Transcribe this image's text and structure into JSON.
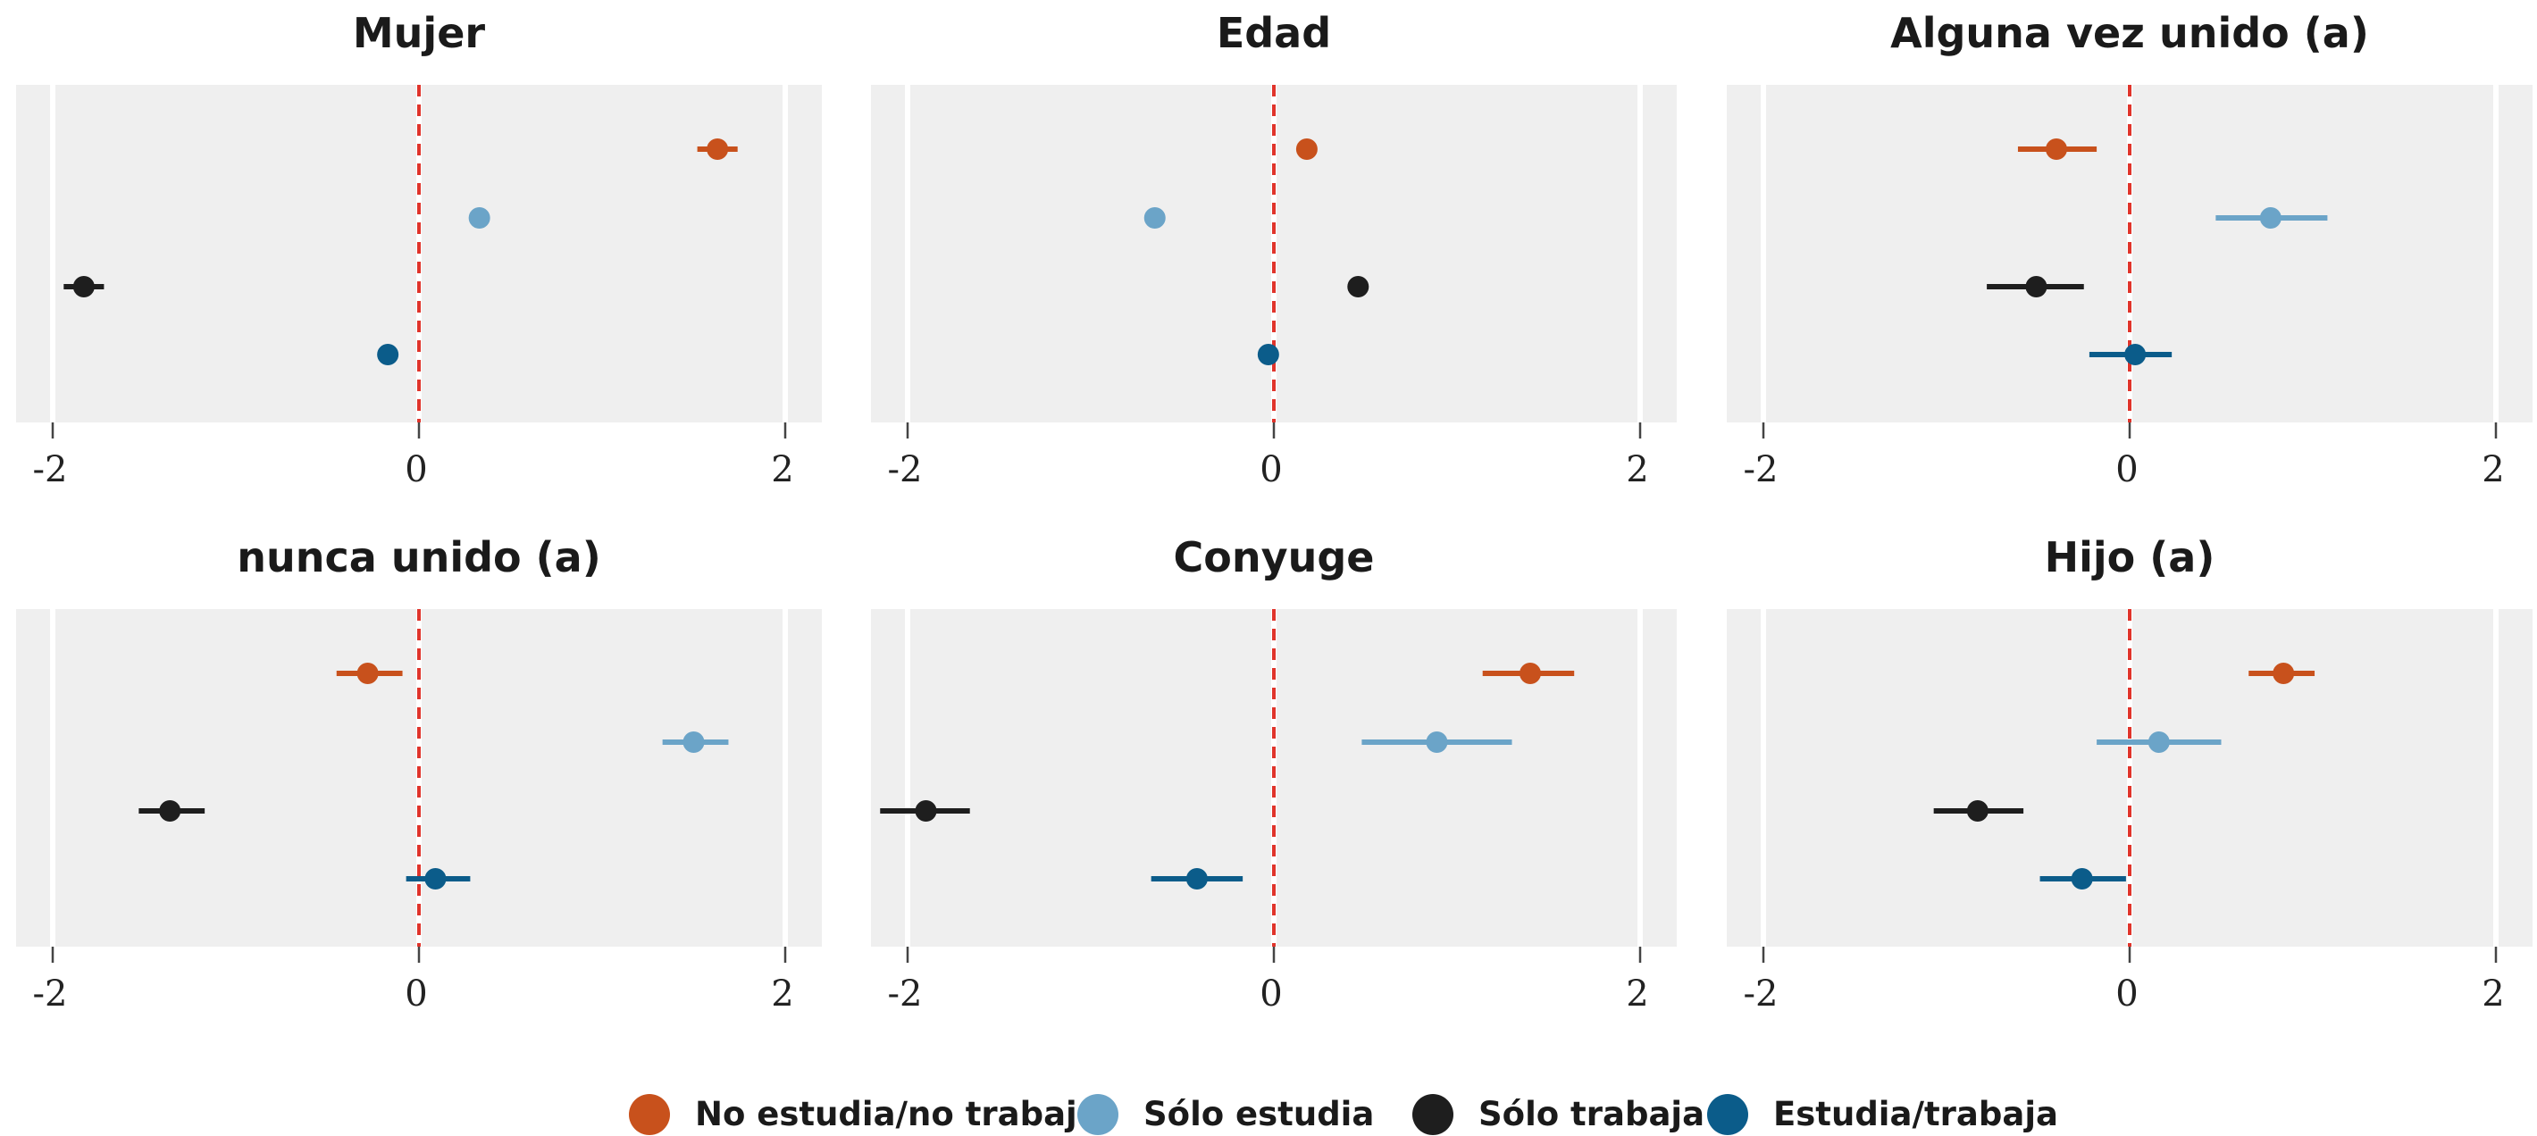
{
  "legend": [
    {
      "name": "No estudia/no trabaja",
      "color": "#C8511C"
    },
    {
      "name": "Sólo estudia",
      "color": "#6BA4C8"
    },
    {
      "name": "Sólo trabaja",
      "color": "#1E1E1E"
    },
    {
      "name": "Estudia/trabaja",
      "color": "#0B5C8A"
    }
  ],
  "chart_data": [
    {
      "type": "scatter",
      "title": "Mujer",
      "xlim": [
        -2.2,
        2.2
      ],
      "ticks": [
        -2,
        0,
        2
      ],
      "reference_line": 0,
      "points": [
        {
          "series": "No estudia/no trabaja",
          "estimate": 1.63,
          "low": 1.52,
          "high": 1.74
        },
        {
          "series": "Sólo estudia",
          "estimate": 0.33,
          "low": 0.33,
          "high": 0.33
        },
        {
          "series": "Sólo trabaja",
          "estimate": -1.83,
          "low": -1.94,
          "high": -1.72
        },
        {
          "series": "Estudia/trabaja",
          "estimate": -0.17,
          "low": -0.17,
          "high": -0.17
        }
      ]
    },
    {
      "type": "scatter",
      "title": "Edad",
      "xlim": [
        -2.2,
        2.2
      ],
      "ticks": [
        -2,
        0,
        2
      ],
      "reference_line": 0,
      "points": [
        {
          "series": "No estudia/no trabaja",
          "estimate": 0.18,
          "low": 0.18,
          "high": 0.18
        },
        {
          "series": "Sólo estudia",
          "estimate": -0.65,
          "low": -0.65,
          "high": -0.65
        },
        {
          "series": "Sólo trabaja",
          "estimate": 0.46,
          "low": 0.46,
          "high": 0.46
        },
        {
          "series": "Estudia/trabaja",
          "estimate": -0.03,
          "low": -0.03,
          "high": -0.03
        }
      ]
    },
    {
      "type": "scatter",
      "title": "Alguna vez unido (a)",
      "xlim": [
        -2.2,
        2.2
      ],
      "ticks": [
        -2,
        0,
        2
      ],
      "reference_line": 0,
      "points": [
        {
          "series": "No estudia/no trabaja",
          "estimate": -0.4,
          "low": -0.61,
          "high": -0.18
        },
        {
          "series": "Sólo estudia",
          "estimate": 0.77,
          "low": 0.47,
          "high": 1.08
        },
        {
          "series": "Sólo trabaja",
          "estimate": -0.51,
          "low": -0.78,
          "high": -0.25
        },
        {
          "series": "Estudia/trabaja",
          "estimate": 0.03,
          "low": -0.22,
          "high": 0.23
        }
      ]
    },
    {
      "type": "scatter",
      "title": "nunca unido (a)",
      "xlim": [
        -2.2,
        2.2
      ],
      "ticks": [
        -2,
        0,
        2
      ],
      "reference_line": 0,
      "points": [
        {
          "series": "No estudia/no trabaja",
          "estimate": -0.28,
          "low": -0.45,
          "high": -0.09
        },
        {
          "series": "Sólo estudia",
          "estimate": 1.5,
          "low": 1.33,
          "high": 1.69
        },
        {
          "series": "Sólo trabaja",
          "estimate": -1.36,
          "low": -1.53,
          "high": -1.17
        },
        {
          "series": "Estudia/trabaja",
          "estimate": 0.09,
          "low": -0.07,
          "high": 0.28
        }
      ]
    },
    {
      "type": "scatter",
      "title": "Conyuge",
      "xlim": [
        -2.2,
        2.2
      ],
      "ticks": [
        -2,
        0,
        2
      ],
      "reference_line": 0,
      "points": [
        {
          "series": "No estudia/no trabaja",
          "estimate": 1.4,
          "low": 1.14,
          "high": 1.64
        },
        {
          "series": "Sólo estudia",
          "estimate": 0.89,
          "low": 0.48,
          "high": 1.3
        },
        {
          "series": "Sólo trabaja",
          "estimate": -1.9,
          "low": -2.15,
          "high": -1.66
        },
        {
          "series": "Estudia/trabaja",
          "estimate": -0.42,
          "low": -0.67,
          "high": -0.17
        }
      ]
    },
    {
      "type": "scatter",
      "title": "Hijo (a)",
      "xlim": [
        -2.2,
        2.2
      ],
      "ticks": [
        -2,
        0,
        2
      ],
      "reference_line": 0,
      "points": [
        {
          "series": "No estudia/no trabaja",
          "estimate": 0.84,
          "low": 0.65,
          "high": 1.01
        },
        {
          "series": "Sólo estudia",
          "estimate": 0.16,
          "low": -0.18,
          "high": 0.5
        },
        {
          "series": "Sólo trabaja",
          "estimate": -0.83,
          "low": -1.07,
          "high": -0.58
        },
        {
          "series": "Estudia/trabaja",
          "estimate": -0.26,
          "low": -0.49,
          "high": -0.02
        }
      ]
    }
  ]
}
